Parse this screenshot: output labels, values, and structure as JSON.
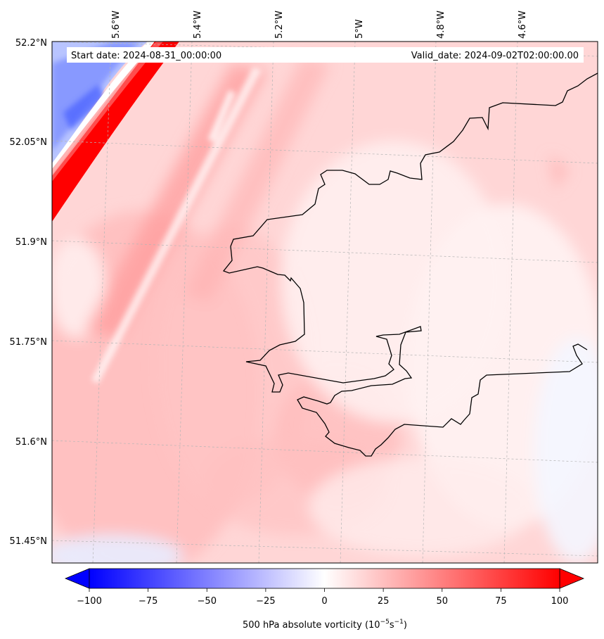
{
  "map": {
    "start_label": "Start date: 2024-08-31_00:00:00",
    "valid_label": "Valid_date: 2024-09-02T02:00:00.00",
    "lon_labels": [
      "5.6°W",
      "5.4°W",
      "5.2°W",
      "5°W",
      "4.8°W",
      "4.6°W"
    ],
    "lat_labels": [
      "52.2°N",
      "52.05°N",
      "51.9°N",
      "51.75°N",
      "51.6°N",
      "51.45°N"
    ]
  },
  "colorbar": {
    "label": "500 hPa absolute vorticity (10",
    "label_exp1": "−5",
    "label_mid": "s",
    "label_exp2": "−1",
    "label_end": ")",
    "min": -100,
    "max": 100,
    "ticks": [
      "−100",
      "−75",
      "−50",
      "−25",
      "0",
      "25",
      "50",
      "75",
      "100"
    ],
    "colors": {
      "neg": "#0000ff",
      "zero": "#ffffff",
      "pos": "#ff0000",
      "land_outline": "#000000",
      "gridline": "#b0b0b0"
    }
  }
}
